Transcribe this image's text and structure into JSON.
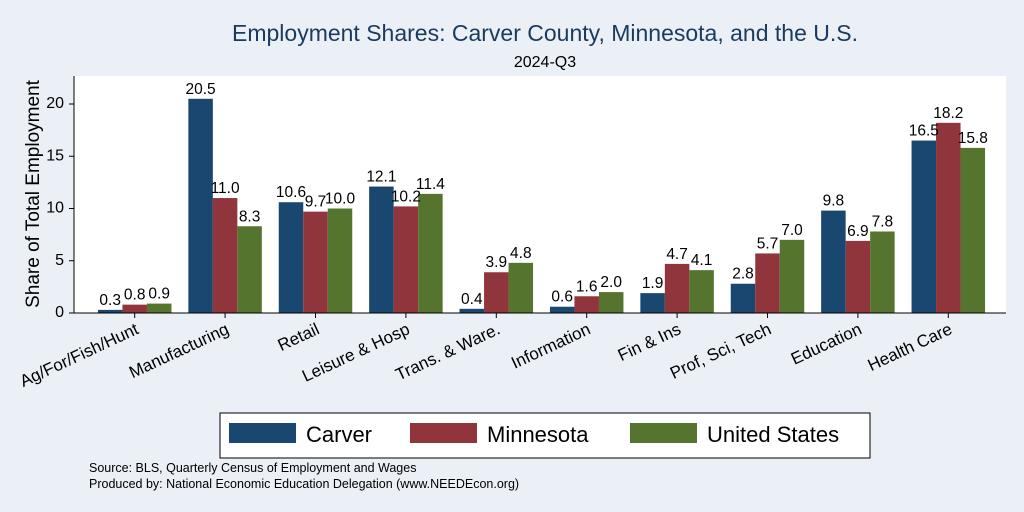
{
  "chart_data": {
    "type": "bar",
    "title": "Employment Shares: Carver County, Minnesota, and the U.S.",
    "subtitle": "2024-Q3",
    "ylabel": "Share of Total Employment",
    "xlabel": "",
    "ylim": [
      0,
      22
    ],
    "yticks": [
      "0",
      "5",
      "10",
      "15",
      "20"
    ],
    "grid": false,
    "legend_position": "bottom",
    "categories": [
      "Ag/For/Fish/Hunt",
      "Manufacturing",
      "Retail",
      "Leisure & Hosp",
      "Trans. & Ware.",
      "Information",
      "Fin & Ins",
      "Prof, Sci, Tech",
      "Education",
      "Health Care"
    ],
    "series": [
      {
        "name": "Carver",
        "color": "#1a476f",
        "values": [
          0.3,
          20.5,
          10.6,
          12.1,
          0.4,
          0.6,
          1.9,
          2.8,
          9.8,
          16.5
        ],
        "labels": [
          "0.3",
          "20.5",
          "10.6",
          "12.1",
          "0.4",
          "0.6",
          "1.9",
          "2.8",
          "9.8",
          "16.5"
        ]
      },
      {
        "name": "Minnesota",
        "color": "#90353b",
        "values": [
          0.8,
          11.0,
          9.7,
          10.2,
          3.9,
          1.6,
          4.7,
          5.7,
          6.9,
          18.2
        ],
        "labels": [
          "0.8",
          "11.0",
          "9.7",
          "10.2",
          "3.9",
          "1.6",
          "4.7",
          "5.7",
          "6.9",
          "18.2"
        ]
      },
      {
        "name": "United States",
        "color": "#55752f",
        "values": [
          0.9,
          8.3,
          10.0,
          11.4,
          4.8,
          2.0,
          4.1,
          7.0,
          7.8,
          15.8
        ],
        "labels": [
          "0.9",
          "8.3",
          "10.0",
          "11.4",
          "4.8",
          "2.0",
          "4.1",
          "7.0",
          "7.8",
          "15.8"
        ]
      }
    ]
  },
  "footer": {
    "source": "Source: BLS, Quarterly Census of Employment and Wages",
    "produced": "Produced by: National Economic Education Delegation (www.NEEDEcon.org)"
  }
}
